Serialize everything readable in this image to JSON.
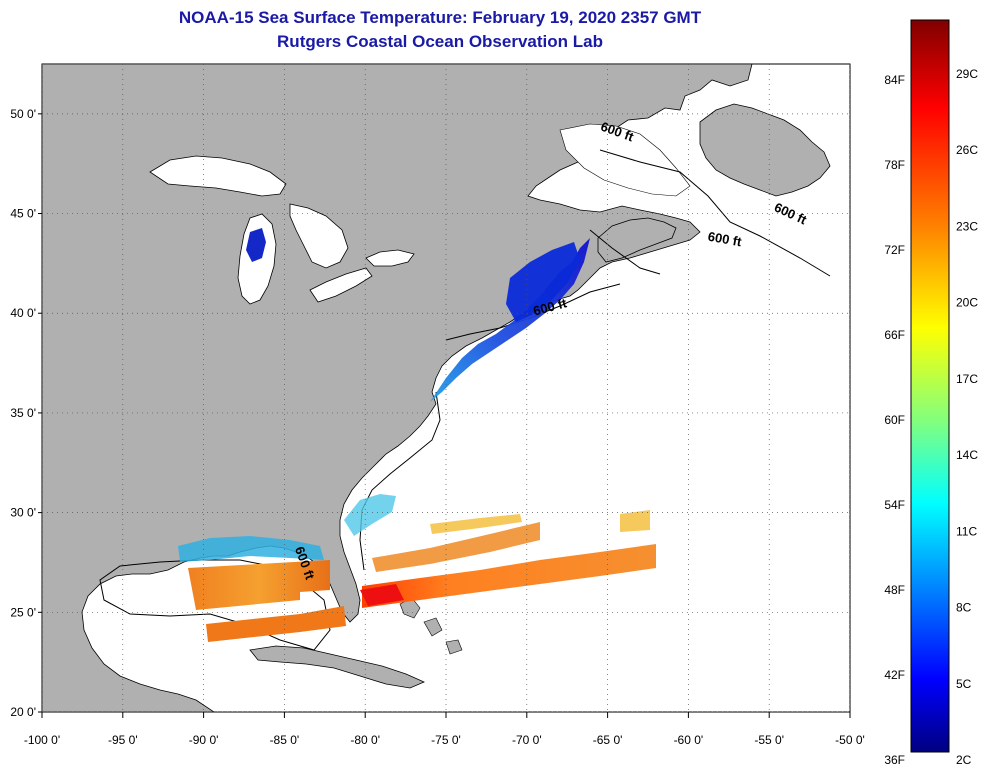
{
  "header": {
    "title": "NOAA-15 Sea Surface Temperature:  February 19, 2020 2357 GMT",
    "subtitle": "Rutgers Coastal Ocean Observation Lab"
  },
  "map": {
    "lon_range": [
      -100,
      -50
    ],
    "lat_range": [
      20,
      52.5
    ],
    "lon_ticks": [
      {
        "value": -100,
        "label": "-100 0'"
      },
      {
        "value": -95,
        "label": "-95 0'"
      },
      {
        "value": -90,
        "label": "-90 0'"
      },
      {
        "value": -85,
        "label": "-85 0'"
      },
      {
        "value": -80,
        "label": "-80 0'"
      },
      {
        "value": -75,
        "label": "-75 0'"
      },
      {
        "value": -70,
        "label": "-70 0'"
      },
      {
        "value": -65,
        "label": "-65 0'"
      },
      {
        "value": -60,
        "label": "-60 0'"
      },
      {
        "value": -55,
        "label": "-55 0'"
      },
      {
        "value": -50,
        "label": "-50 0'"
      }
    ],
    "lat_ticks": [
      {
        "value": 50,
        "label": "50 0'"
      },
      {
        "value": 45,
        "label": "45 0'"
      },
      {
        "value": 40,
        "label": "40 0'"
      },
      {
        "value": 35,
        "label": "35 0'"
      },
      {
        "value": 30,
        "label": "30 0'"
      },
      {
        "value": 25,
        "label": "25 0'"
      },
      {
        "value": 20,
        "label": "20 0'"
      }
    ],
    "isobath_labels": [
      {
        "text": "600 ft",
        "lon": -64.5,
        "lat": 48.9
      },
      {
        "text": "600 ft",
        "lon": -57.8,
        "lat": 43.5
      },
      {
        "text": "600 ft",
        "lon": -53.8,
        "lat": 44.8
      },
      {
        "text": "600 ft",
        "lon": -68.5,
        "lat": 40.1
      },
      {
        "text": "600 ft",
        "lon": -84.0,
        "lat": 27.4
      }
    ],
    "land_color": "#b0b0b0",
    "ocean_color": "#ffffff"
  },
  "colorbar": {
    "fahrenheit_labels": [
      "84F",
      "78F",
      "72F",
      "66F",
      "60F",
      "54F",
      "48F",
      "42F",
      "36F"
    ],
    "celsius_labels": [
      "29C",
      "26C",
      "23C",
      "20C",
      "17C",
      "14C",
      "11C",
      "8C",
      "5C",
      "2C"
    ],
    "colors": [
      "#800000",
      "#ff0000",
      "#ff8000",
      "#ffff00",
      "#80ff80",
      "#00ffff",
      "#0080ff",
      "#0000ff",
      "#000080"
    ]
  }
}
